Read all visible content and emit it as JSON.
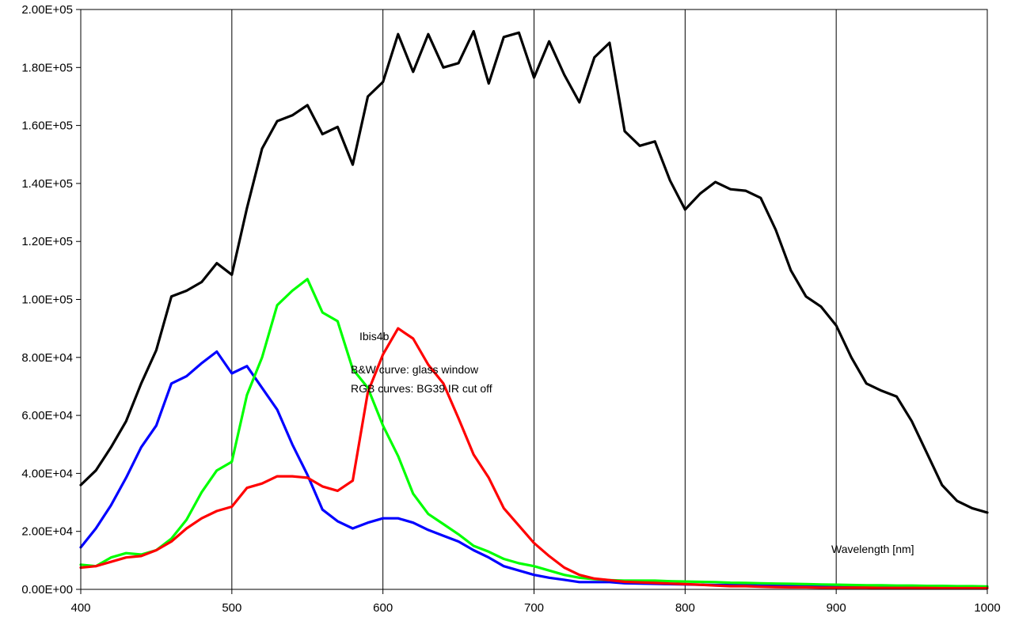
{
  "chart_data": {
    "type": "line",
    "title": "",
    "xlabel": "",
    "ylabel": "",
    "xlim": [
      400,
      1000
    ],
    "ylim": [
      0,
      200000
    ],
    "x_ticks": [
      400,
      500,
      600,
      700,
      800,
      900,
      1000
    ],
    "x_tick_labels": [
      "400",
      "500",
      "600",
      "700",
      "800",
      "900",
      "1000"
    ],
    "y_ticks": [
      0,
      20000,
      40000,
      60000,
      80000,
      100000,
      120000,
      140000,
      160000,
      180000,
      200000
    ],
    "y_tick_labels": [
      "0.00E+00",
      "2.00E+04",
      "4.00E+04",
      "6.00E+04",
      "8.00E+04",
      "1.00E+05",
      "1.20E+05",
      "1.40E+05",
      "1.60E+05",
      "1.80E+05",
      "2.00E+05"
    ],
    "grid": {
      "vertical": true,
      "horizontal": false
    },
    "legend": "none",
    "annotations": {
      "sensor": "Ibis4b",
      "bw_note": "B&W curve: glass window",
      "rgb_note": "RGB  curves: BG39 IR cut off",
      "x_unit_label": "Wavelength [nm]"
    },
    "x": [
      400,
      410,
      420,
      430,
      440,
      450,
      460,
      470,
      480,
      490,
      500,
      510,
      520,
      530,
      540,
      550,
      560,
      570,
      580,
      590,
      600,
      610,
      620,
      630,
      640,
      650,
      660,
      670,
      680,
      690,
      700,
      710,
      720,
      730,
      740,
      750,
      760,
      770,
      780,
      790,
      800,
      810,
      820,
      830,
      840,
      850,
      860,
      870,
      880,
      890,
      900,
      910,
      920,
      930,
      940,
      950,
      960,
      970,
      980,
      990,
      1000
    ],
    "series": [
      {
        "color": "#000000",
        "values": [
          36000,
          41000,
          49000,
          58000,
          71000,
          82500,
          101000,
          103000,
          106000,
          112500,
          108500,
          131500,
          152000,
          161500,
          163500,
          167000,
          157000,
          159500,
          146500,
          170000,
          175000,
          191500,
          178500,
          191500,
          180000,
          181500,
          192500,
          174500,
          190500,
          192000,
          176500,
          189000,
          177500,
          168000,
          183500,
          188500,
          158000,
          153000,
          154500,
          141000,
          131000,
          136500,
          140500,
          138000,
          137500,
          135000,
          124000,
          110000,
          101000,
          97500,
          91000,
          80000,
          71000,
          68500,
          66500,
          58000,
          47000,
          36000,
          30500,
          28000,
          26500
        ]
      },
      {
        "color": "#0000ff",
        "values": [
          14500,
          21000,
          29000,
          38500,
          49000,
          56500,
          71000,
          73500,
          78000,
          82000,
          74500,
          77000,
          69500,
          62000,
          50000,
          39500,
          27500,
          23500,
          21000,
          23000,
          24500,
          24500,
          23000,
          20500,
          18500,
          16500,
          13500,
          11000,
          8000,
          6500,
          5000,
          4000,
          3300,
          2500,
          2500,
          2500,
          2100,
          2000,
          1900,
          1800,
          1700,
          1600,
          1500,
          1500,
          1400,
          1300,
          1200,
          1200,
          1100,
          1100,
          1000,
          1000,
          1000,
          1000,
          900,
          900,
          900,
          900,
          900,
          900,
          900
        ]
      },
      {
        "color": "#00ff00",
        "values": [
          8500,
          8000,
          11000,
          12500,
          12000,
          13500,
          17500,
          24000,
          33500,
          41000,
          44000,
          67000,
          80000,
          98000,
          103000,
          107000,
          95500,
          92500,
          76000,
          69500,
          56500,
          46000,
          33000,
          26000,
          22500,
          19000,
          15000,
          13000,
          10500,
          9000,
          8000,
          6500,
          5000,
          4000,
          3500,
          3200,
          3000,
          3000,
          3000,
          2800,
          2700,
          2600,
          2500,
          2300,
          2200,
          2100,
          2000,
          1900,
          1800,
          1700,
          1600,
          1500,
          1400,
          1400,
          1300,
          1300,
          1200,
          1200,
          1100,
          1100,
          1000
        ]
      },
      {
        "color": "#ff0000",
        "values": [
          7500,
          8000,
          9500,
          11000,
          11500,
          13500,
          16500,
          21000,
          24500,
          27000,
          28500,
          35000,
          36500,
          39000,
          39000,
          38500,
          35500,
          34000,
          37500,
          68000,
          81000,
          90000,
          86500,
          77500,
          71000,
          59000,
          46500,
          38500,
          28000,
          22000,
          16000,
          11500,
          7500,
          5000,
          3700,
          3200,
          2600,
          2400,
          2200,
          2000,
          1800,
          1600,
          1300,
          1100,
          1100,
          900,
          800,
          700,
          700,
          600,
          600,
          600,
          600,
          500,
          500,
          500,
          500,
          400,
          400,
          400,
          400
        ]
      }
    ]
  }
}
